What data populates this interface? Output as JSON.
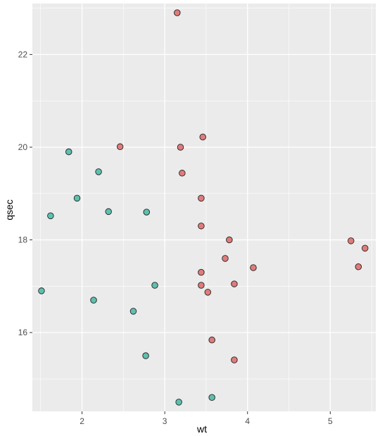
{
  "chart_data": {
    "type": "scatter",
    "title": "",
    "xlabel": "wt",
    "ylabel": "qsec",
    "xlim": [
      1.4,
      5.55
    ],
    "ylim": [
      14.3,
      23.1
    ],
    "x_ticks": [
      2,
      3,
      4,
      5
    ],
    "y_ticks": [
      16,
      18,
      20,
      22
    ],
    "grid": true,
    "legend": "none",
    "background": "#ebebeb",
    "gridline_color": "#ffffff",
    "point_stroke": "#222222",
    "series": [
      {
        "color": "#e07b7b",
        "points": [
          {
            "x": 3.15,
            "y": 22.9
          },
          {
            "x": 3.19,
            "y": 20.0
          },
          {
            "x": 3.46,
            "y": 20.22
          },
          {
            "x": 2.46,
            "y": 20.01
          },
          {
            "x": 3.21,
            "y": 19.44
          },
          {
            "x": 3.44,
            "y": 18.9
          },
          {
            "x": 3.44,
            "y": 18.3
          },
          {
            "x": 3.78,
            "y": 18.0
          },
          {
            "x": 3.73,
            "y": 17.6
          },
          {
            "x": 4.07,
            "y": 17.4
          },
          {
            "x": 3.44,
            "y": 17.3
          },
          {
            "x": 3.44,
            "y": 17.02
          },
          {
            "x": 3.84,
            "y": 17.05
          },
          {
            "x": 3.52,
            "y": 16.87
          },
          {
            "x": 3.57,
            "y": 15.84
          },
          {
            "x": 3.84,
            "y": 15.41
          },
          {
            "x": 5.25,
            "y": 17.98
          },
          {
            "x": 5.42,
            "y": 17.82
          },
          {
            "x": 5.34,
            "y": 17.42
          }
        ]
      },
      {
        "color": "#5fbfae",
        "points": [
          {
            "x": 1.84,
            "y": 19.9
          },
          {
            "x": 2.2,
            "y": 19.47
          },
          {
            "x": 1.94,
            "y": 18.9
          },
          {
            "x": 1.62,
            "y": 18.52
          },
          {
            "x": 2.32,
            "y": 18.61
          },
          {
            "x": 2.78,
            "y": 18.6
          },
          {
            "x": 2.88,
            "y": 17.02
          },
          {
            "x": 1.51,
            "y": 16.9
          },
          {
            "x": 2.14,
            "y": 16.7
          },
          {
            "x": 2.62,
            "y": 16.46
          },
          {
            "x": 2.77,
            "y": 15.5
          },
          {
            "x": 3.57,
            "y": 14.6
          },
          {
            "x": 3.17,
            "y": 14.5
          }
        ]
      }
    ]
  }
}
